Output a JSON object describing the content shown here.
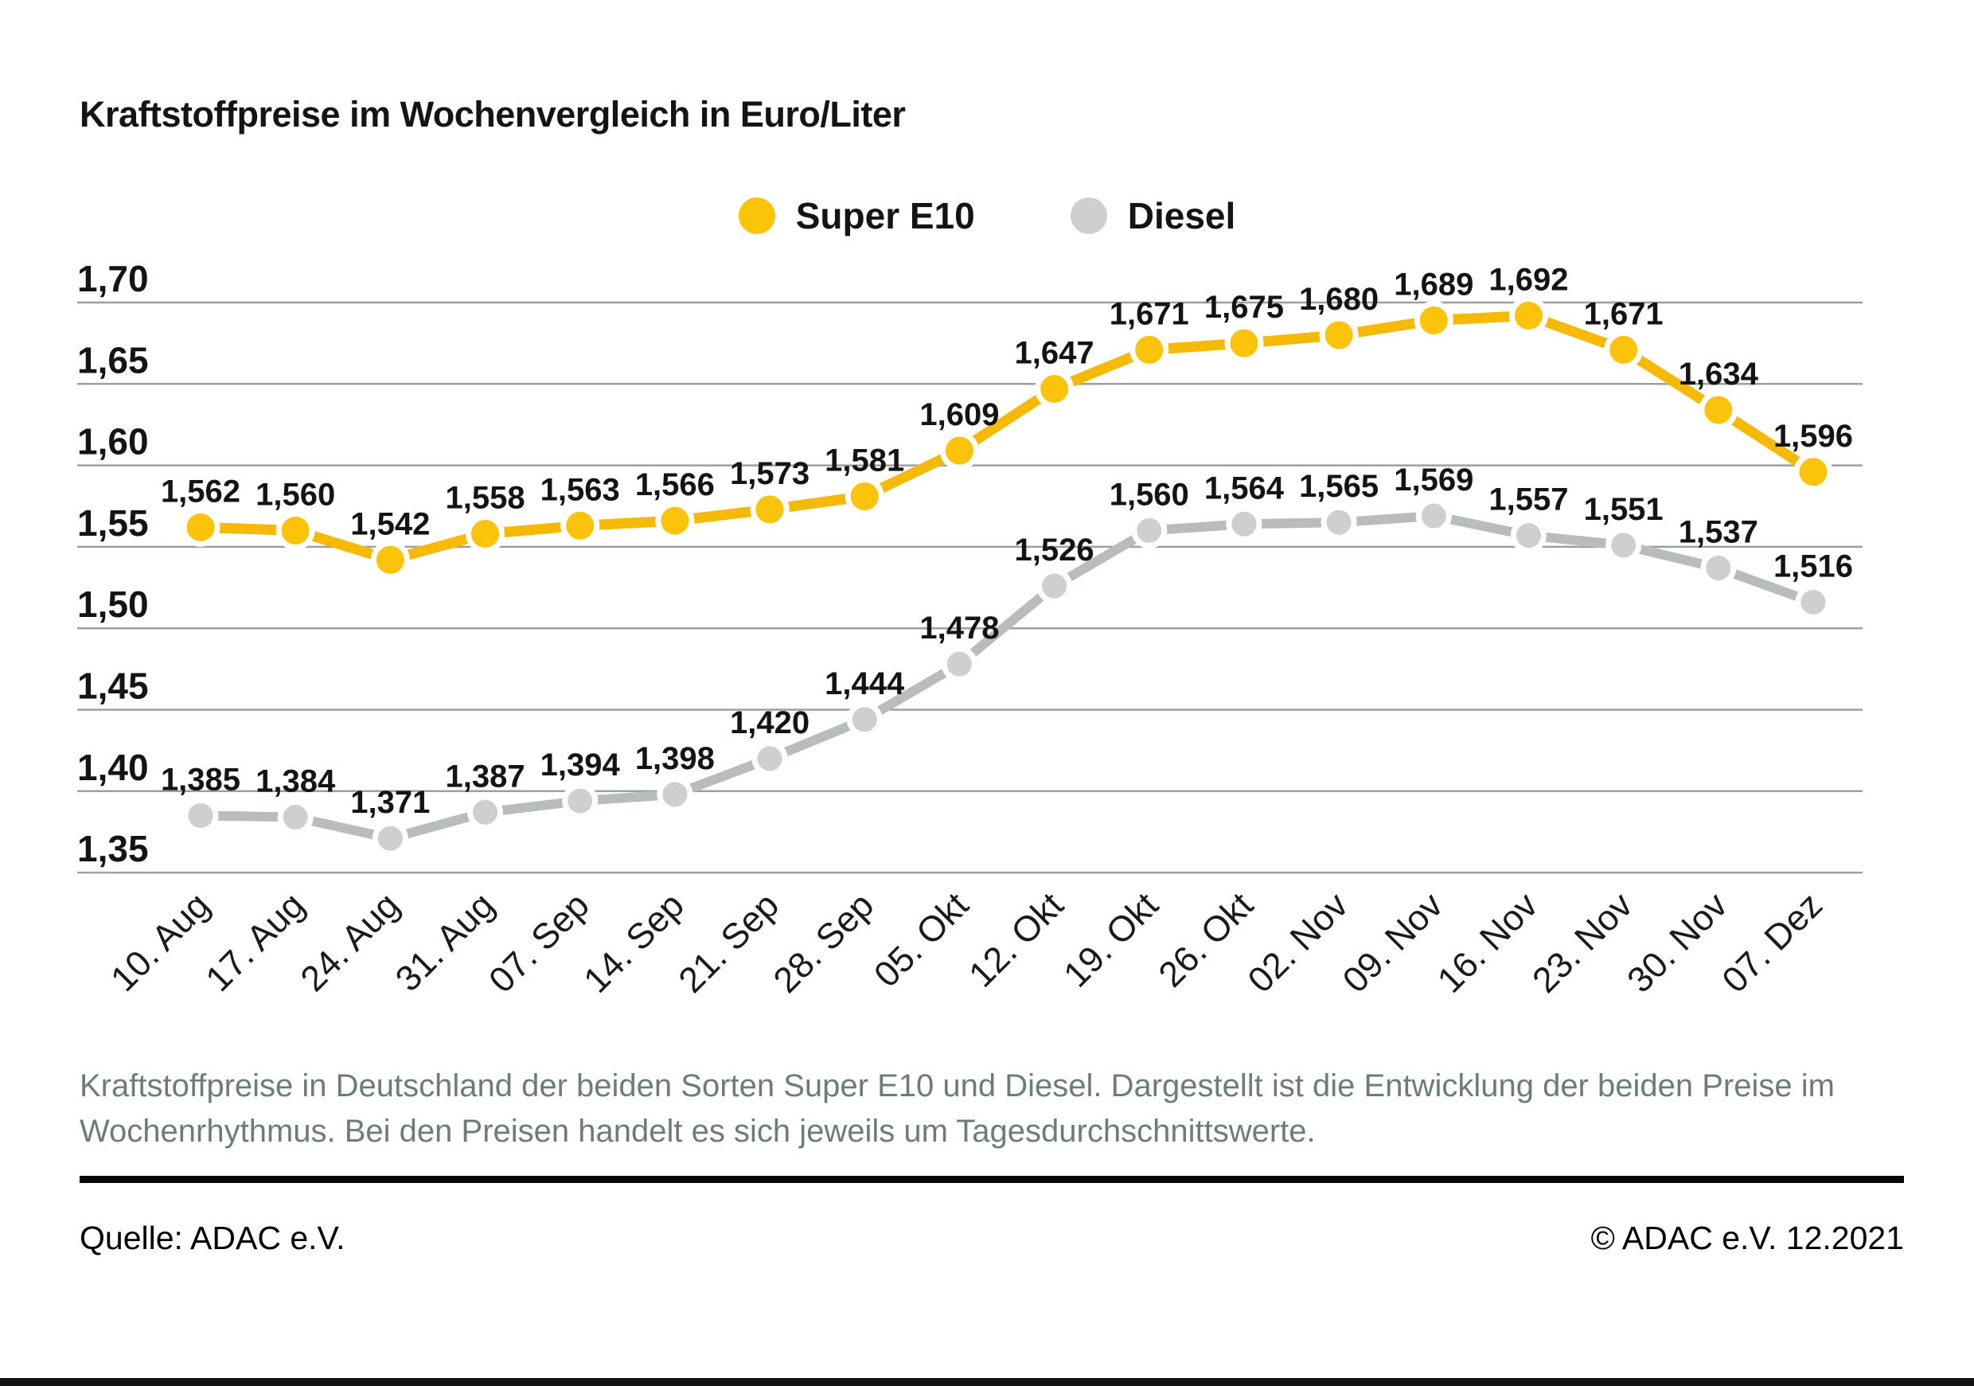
{
  "title": "Kraftstoffpreise im Wochenvergleich in Euro/Liter",
  "legend": [
    {
      "label": "Super E10",
      "color": "#FCC30B"
    },
    {
      "label": "Diesel",
      "color": "#CDD0CD"
    }
  ],
  "chart_data": {
    "type": "line",
    "title": "Kraftstoffpreise im Wochenvergleich in Euro/Liter",
    "categories": [
      "10. Aug",
      "17. Aug",
      "24. Aug",
      "31. Aug",
      "07. Sep",
      "14. Sep",
      "21. Sep",
      "28. Sep",
      "05. Okt",
      "12. Okt",
      "19. Okt",
      "26. Okt",
      "02. Nov",
      "09. Nov",
      "16. Nov",
      "23. Nov",
      "30. Nov",
      "07. Dez"
    ],
    "series": [
      {
        "name": "Super E10",
        "marker_color": "#FCC30B",
        "line_color": "#F5B906",
        "values": [
          1.562,
          1.56,
          1.542,
          1.558,
          1.563,
          1.566,
          1.573,
          1.581,
          1.609,
          1.647,
          1.671,
          1.675,
          1.68,
          1.689,
          1.692,
          1.671,
          1.634,
          1.596
        ]
      },
      {
        "name": "Diesel",
        "marker_color": "#CDD0CD",
        "line_color": "#B9BDB9",
        "values": [
          1.385,
          1.384,
          1.371,
          1.387,
          1.394,
          1.398,
          1.42,
          1.444,
          1.478,
          1.526,
          1.56,
          1.564,
          1.565,
          1.569,
          1.557,
          1.551,
          1.537,
          1.516
        ]
      }
    ],
    "ylabel": "Euro/Liter",
    "ylim": [
      1.35,
      1.7
    ],
    "yticks": [
      1.7,
      1.65,
      1.6,
      1.55,
      1.5,
      1.45,
      1.4,
      1.35
    ],
    "grid": true,
    "grid_color": "#9aa0a0",
    "value_decimal_separator": ",",
    "legend_position": "top-center"
  },
  "description": "Kraftstoffpreise in Deutschland der beiden Sorten Super E10 und Diesel. Dargestellt ist die Entwicklung der beiden Preise im Wochenrhythmus. Bei den Preisen handelt es sich jeweils um Tagesdurchschnittswerte.",
  "source": {
    "left": "Quelle: ADAC e.V.",
    "right": "© ADAC e.V. 12.2021"
  }
}
